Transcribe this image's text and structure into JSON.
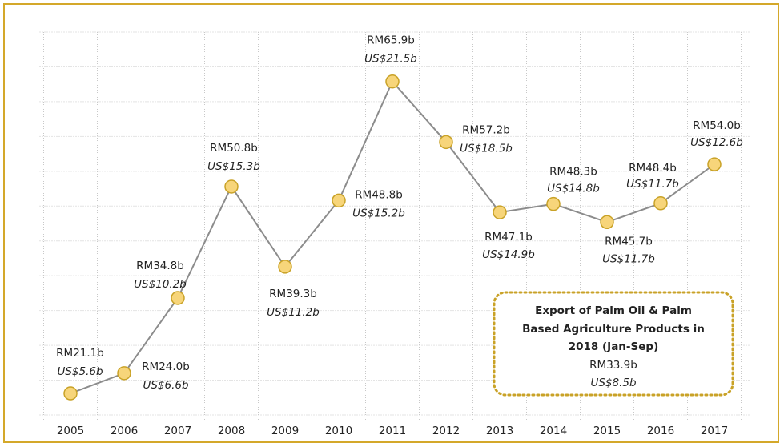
{
  "chart_data": {
    "type": "line",
    "categories": [
      "2005",
      "2006",
      "2007",
      "2008",
      "2009",
      "2010",
      "2011",
      "2012",
      "2013",
      "2014",
      "2015",
      "2016",
      "2017"
    ],
    "values": [
      21.1,
      24.0,
      34.8,
      50.8,
      39.3,
      48.8,
      65.9,
      57.2,
      47.1,
      48.3,
      45.7,
      48.4,
      54.0
    ],
    "value_labels": [
      "RM21.1b",
      "RM24.0b",
      "RM34.8b",
      "RM50.8b",
      "RM39.3b",
      "RM48.8b",
      "RM65.9b",
      "RM57.2b",
      "RM47.1b",
      "RM48.3b",
      "RM45.7b",
      "RM48.4b",
      "RM54.0b"
    ],
    "secondary_labels": [
      "US$5.6b",
      "US$6.6b",
      "US$10.2b",
      "US$15.3b",
      "US$11.2b",
      "US$15.2b",
      "US$21.5b",
      "US$18.5b",
      "US$14.9b",
      "US$14.8b",
      "US$11.7b",
      "US$11.7b",
      "US$12.6b"
    ],
    "color": "#8c8c8c",
    "marker_color": "#f7d57a",
    "marker_edge": "#c9a227",
    "ylim": [
      18,
      73
    ],
    "yticks": [
      18,
      23,
      28,
      33,
      38,
      43,
      48,
      53,
      58,
      63,
      68,
      73
    ],
    "grid": true,
    "annotation": {
      "title_lines": [
        "Export of Palm Oil & Palm",
        "Based Agriculture Products in",
        "2018 (Jan-Sep)"
      ],
      "rm": "RM33.9b",
      "usd": "US$8.5b"
    }
  }
}
